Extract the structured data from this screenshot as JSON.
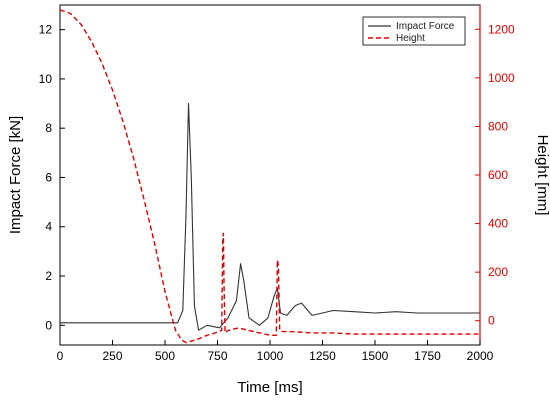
{
  "chart_data": {
    "type": "line",
    "xlabel": "Time [ms]",
    "ylabel_left": "Impact Force [kN]",
    "ylabel_right": "Height [mm]",
    "xlim": [
      0,
      2000
    ],
    "ylim_left": [
      -0.8,
      13
    ],
    "ylim_right": [
      -100,
      1300
    ],
    "x_ticks": [
      0,
      250,
      500,
      750,
      1000,
      1250,
      1500,
      1750,
      2000
    ],
    "y_left_ticks": [
      0,
      2,
      4,
      6,
      8,
      10,
      12
    ],
    "y_right_ticks": [
      0,
      200,
      400,
      600,
      800,
      1000,
      1200
    ],
    "legend_position": "top-right",
    "colors": {
      "force": "#333333",
      "height": "#e00000",
      "right_axis": "#e00000"
    },
    "series": [
      {
        "name": "Impact Force",
        "axis": "left",
        "style": "solid",
        "x": [
          0,
          100,
          200,
          300,
          400,
          500,
          560,
          585,
          600,
          612,
          625,
          640,
          660,
          700,
          760,
          800,
          840,
          860,
          875,
          900,
          950,
          990,
          1020,
          1035,
          1050,
          1080,
          1100,
          1120,
          1150,
          1170,
          1200,
          1250,
          1300,
          1400,
          1500,
          1600,
          1700,
          1800,
          1900,
          2000
        ],
        "y": [
          0.1,
          0.1,
          0.1,
          0.1,
          0.1,
          0.1,
          0.1,
          0.6,
          4.5,
          9.0,
          6.0,
          0.8,
          -0.2,
          0.0,
          -0.1,
          0.3,
          1.0,
          2.5,
          1.8,
          0.3,
          0.0,
          0.3,
          1.2,
          1.5,
          0.5,
          0.4,
          0.6,
          0.8,
          0.9,
          0.7,
          0.4,
          0.5,
          0.6,
          0.55,
          0.5,
          0.55,
          0.5,
          0.5,
          0.5,
          0.5
        ]
      },
      {
        "name": "Height",
        "axis": "right",
        "style": "dashed",
        "x": [
          0,
          50,
          100,
          150,
          200,
          250,
          300,
          350,
          400,
          450,
          500,
          550,
          580,
          600,
          620,
          660,
          700,
          740,
          770,
          775,
          778,
          781,
          786,
          800,
          850,
          900,
          950,
          1000,
          1030,
          1035,
          1040,
          1043,
          1046,
          1060,
          1100,
          1200,
          1300,
          1400,
          1500,
          1600,
          1700,
          1800,
          1900,
          2000
        ],
        "y": [
          1280,
          1265,
          1220,
          1150,
          1060,
          950,
          820,
          670,
          500,
          320,
          120,
          -40,
          -80,
          -90,
          -85,
          -75,
          -60,
          -50,
          -40,
          340,
          360,
          150,
          -50,
          -40,
          -30,
          -40,
          -50,
          -60,
          -60,
          250,
          230,
          100,
          -40,
          -45,
          -45,
          -50,
          -50,
          -55,
          -55,
          -55,
          -55,
          -55,
          -55,
          -55
        ]
      }
    ]
  }
}
